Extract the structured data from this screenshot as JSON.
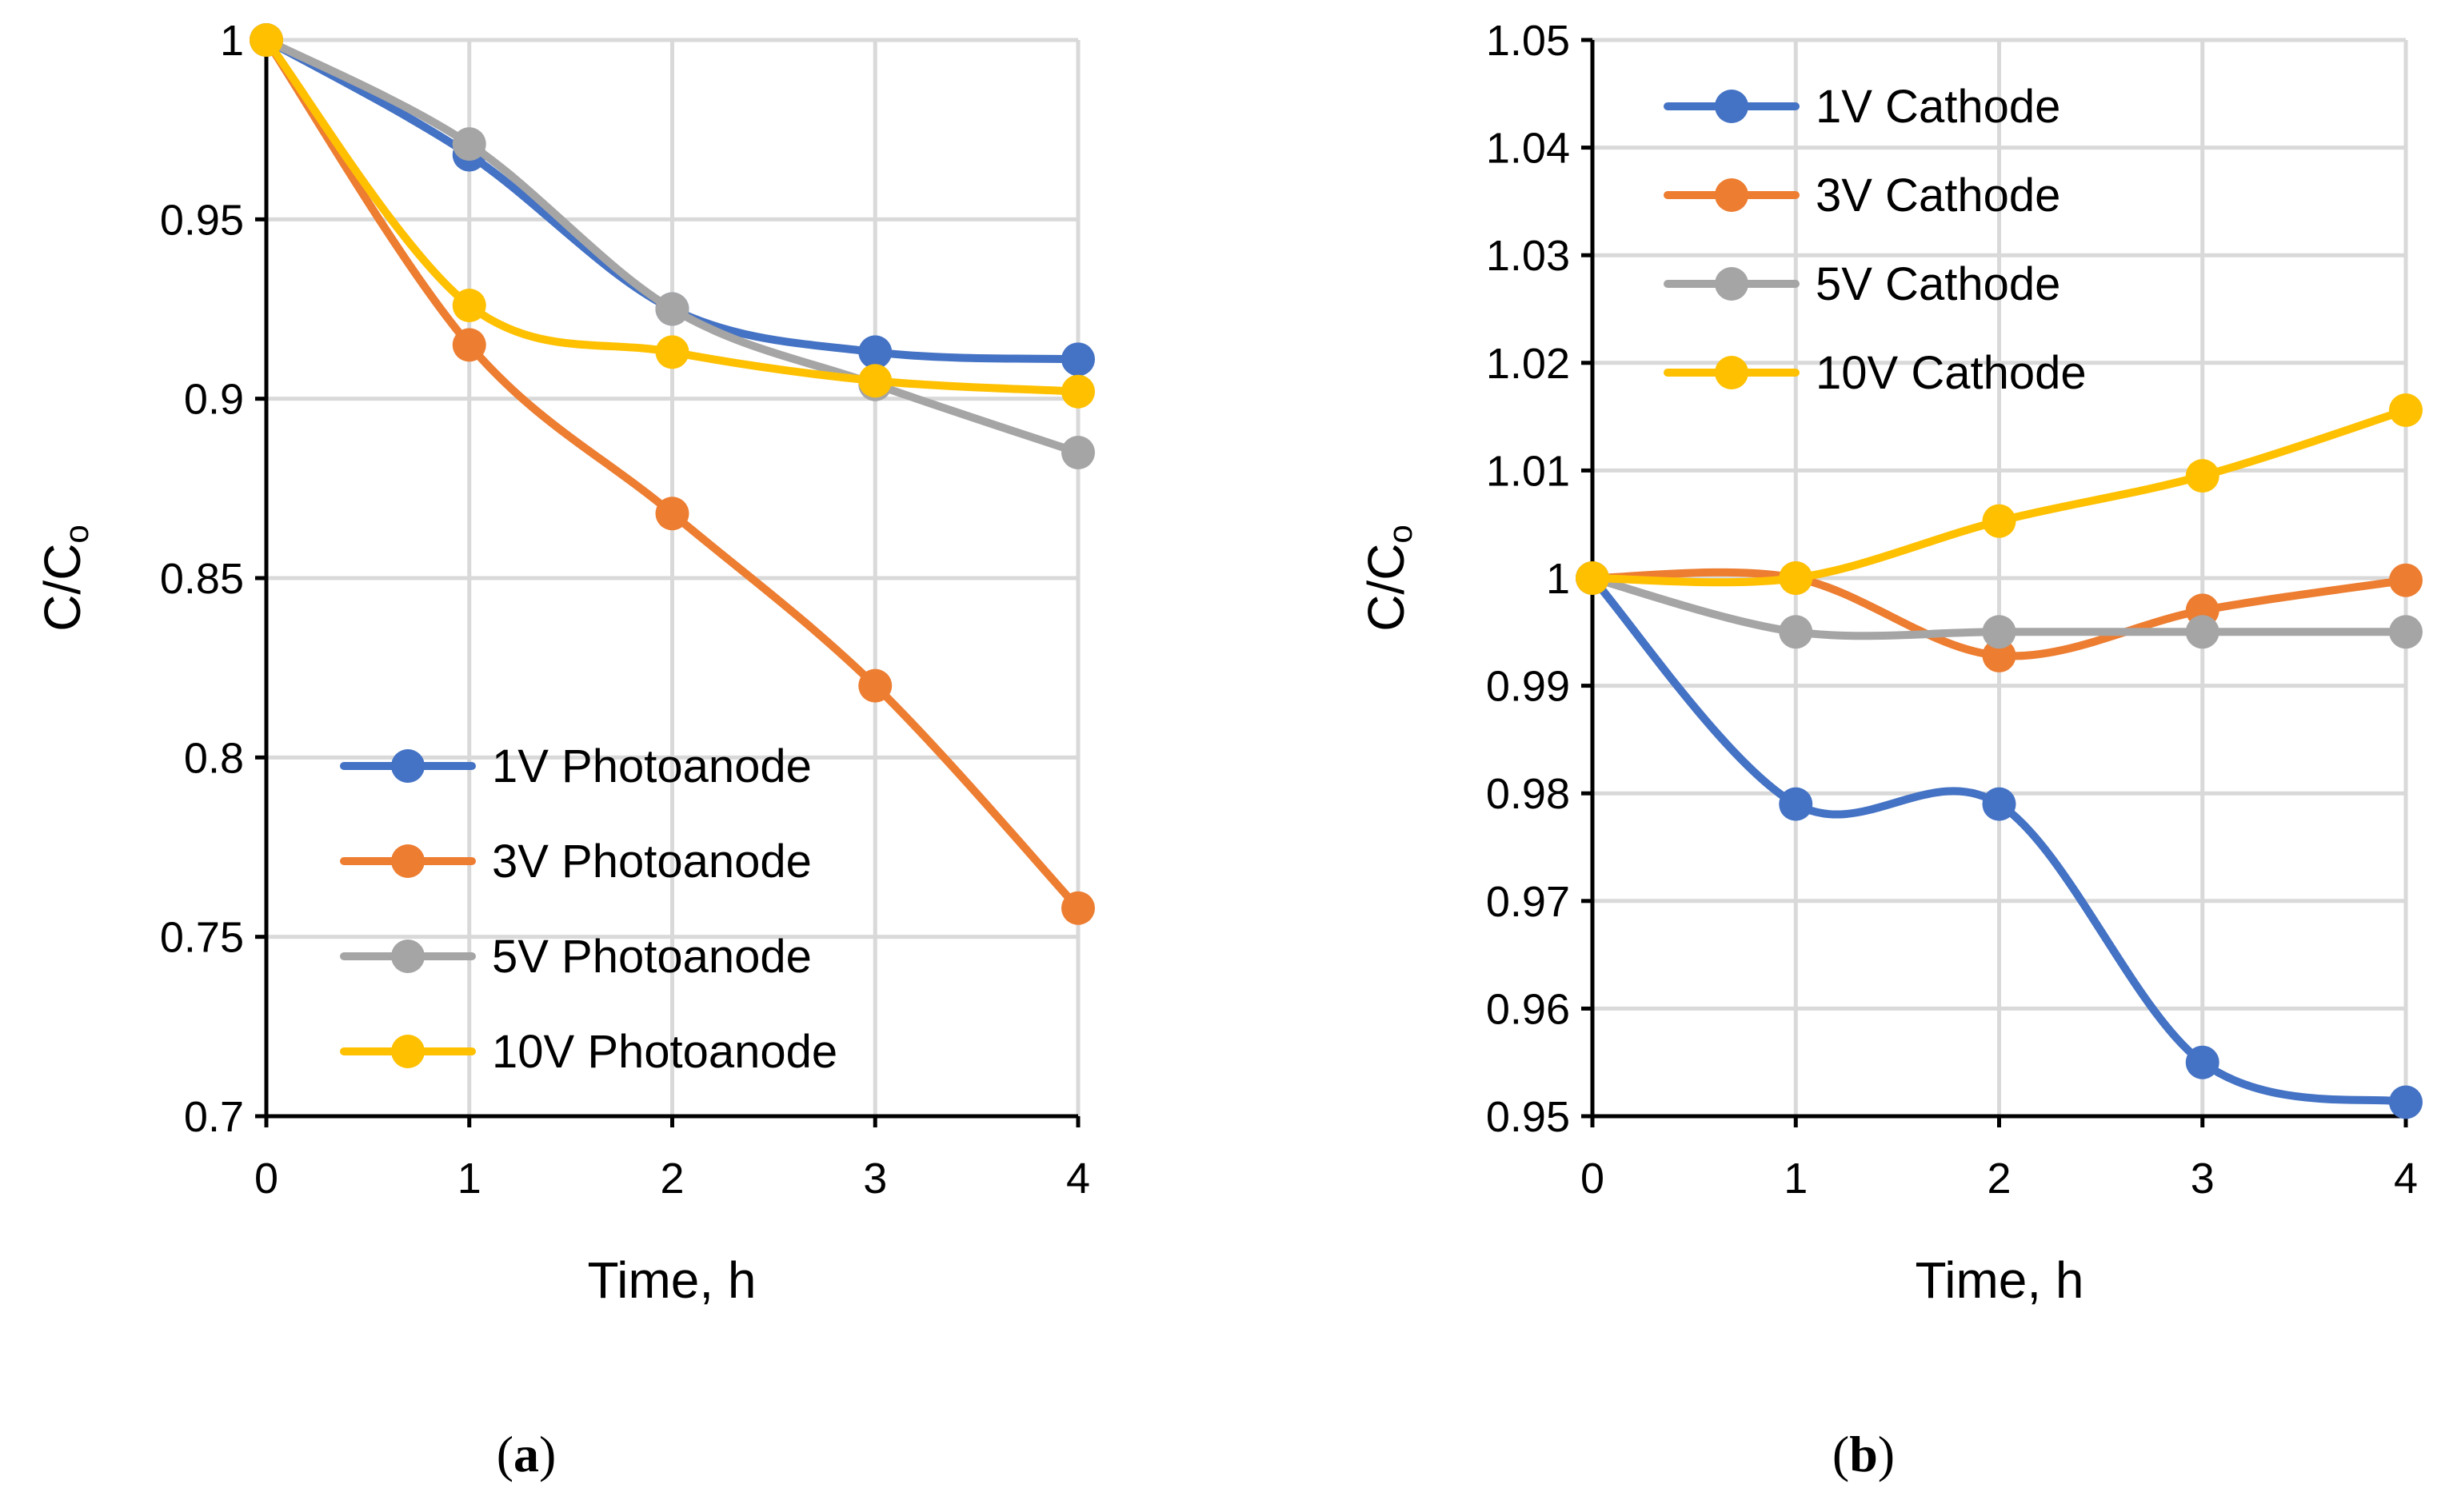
{
  "chart_data": [
    {
      "panel": "a",
      "type": "line",
      "xlabel": "Time, h",
      "ylabel_main": "C/C",
      "ylabel_sub": "o",
      "x": [
        0,
        1,
        2,
        3,
        4
      ],
      "xlim": [
        0,
        4
      ],
      "ylim": [
        0.7,
        1.0
      ],
      "xticks": [
        "0",
        "1",
        "2",
        "3",
        "4"
      ],
      "yticks": [
        "0.7",
        "0.75",
        "0.8",
        "0.85",
        "0.9",
        "0.95",
        "1"
      ],
      "ytick_values": [
        0.7,
        0.75,
        0.8,
        0.85,
        0.9,
        0.95,
        1.0
      ],
      "grid": true,
      "legend_position": "bottom-center",
      "series": [
        {
          "name": "1V Photoanode",
          "color": "#4472c4",
          "values": [
            1.0,
            0.968,
            0.925,
            0.913,
            0.911
          ]
        },
        {
          "name": "3V Photoanode",
          "color": "#ed7d31",
          "values": [
            1.0,
            0.915,
            0.868,
            0.82,
            0.758
          ]
        },
        {
          "name": "5V Photoanode",
          "color": "#a5a5a5",
          "values": [
            1.0,
            0.971,
            0.925,
            0.904,
            0.885
          ]
        },
        {
          "name": "10V Photoanode",
          "color": "#ffc000",
          "values": [
            1.0,
            0.926,
            0.913,
            0.905,
            0.902
          ]
        }
      ]
    },
    {
      "panel": "b",
      "type": "line",
      "xlabel": "Time, h",
      "ylabel_main": "C/C",
      "ylabel_sub": "o",
      "x": [
        0,
        1,
        2,
        3,
        4
      ],
      "xlim": [
        0,
        4
      ],
      "ylim": [
        0.95,
        1.05
      ],
      "xticks": [
        "0",
        "1",
        "2",
        "3",
        "4"
      ],
      "yticks": [
        "0.95",
        "0.96",
        "0.97",
        "0.98",
        "0.99",
        "1",
        "1.01",
        "1.02",
        "1.03",
        "1.04",
        "1.05"
      ],
      "ytick_values": [
        0.95,
        0.96,
        0.97,
        0.98,
        0.99,
        1.0,
        1.01,
        1.02,
        1.03,
        1.04,
        1.05
      ],
      "grid": true,
      "legend_position": "top-left",
      "series": [
        {
          "name": "1V Cathode",
          "color": "#4472c4",
          "values": [
            1.0,
            0.979,
            0.979,
            0.955,
            0.9513
          ]
        },
        {
          "name": "3V Cathode",
          "color": "#ed7d31",
          "values": [
            1.0,
            1.0,
            0.9928,
            0.997,
            0.9998
          ]
        },
        {
          "name": "5V Cathode",
          "color": "#a5a5a5",
          "values": [
            1.0,
            0.995,
            0.995,
            0.995,
            0.995
          ]
        },
        {
          "name": "10V Cathode",
          "color": "#ffc000",
          "values": [
            1.0,
            1.0,
            1.0053,
            1.0095,
            1.0156
          ]
        }
      ]
    }
  ],
  "captions": {
    "a": {
      "open": "(",
      "letter": "a",
      "close": ")"
    },
    "b": {
      "open": "(",
      "letter": "b",
      "close": ")"
    }
  }
}
